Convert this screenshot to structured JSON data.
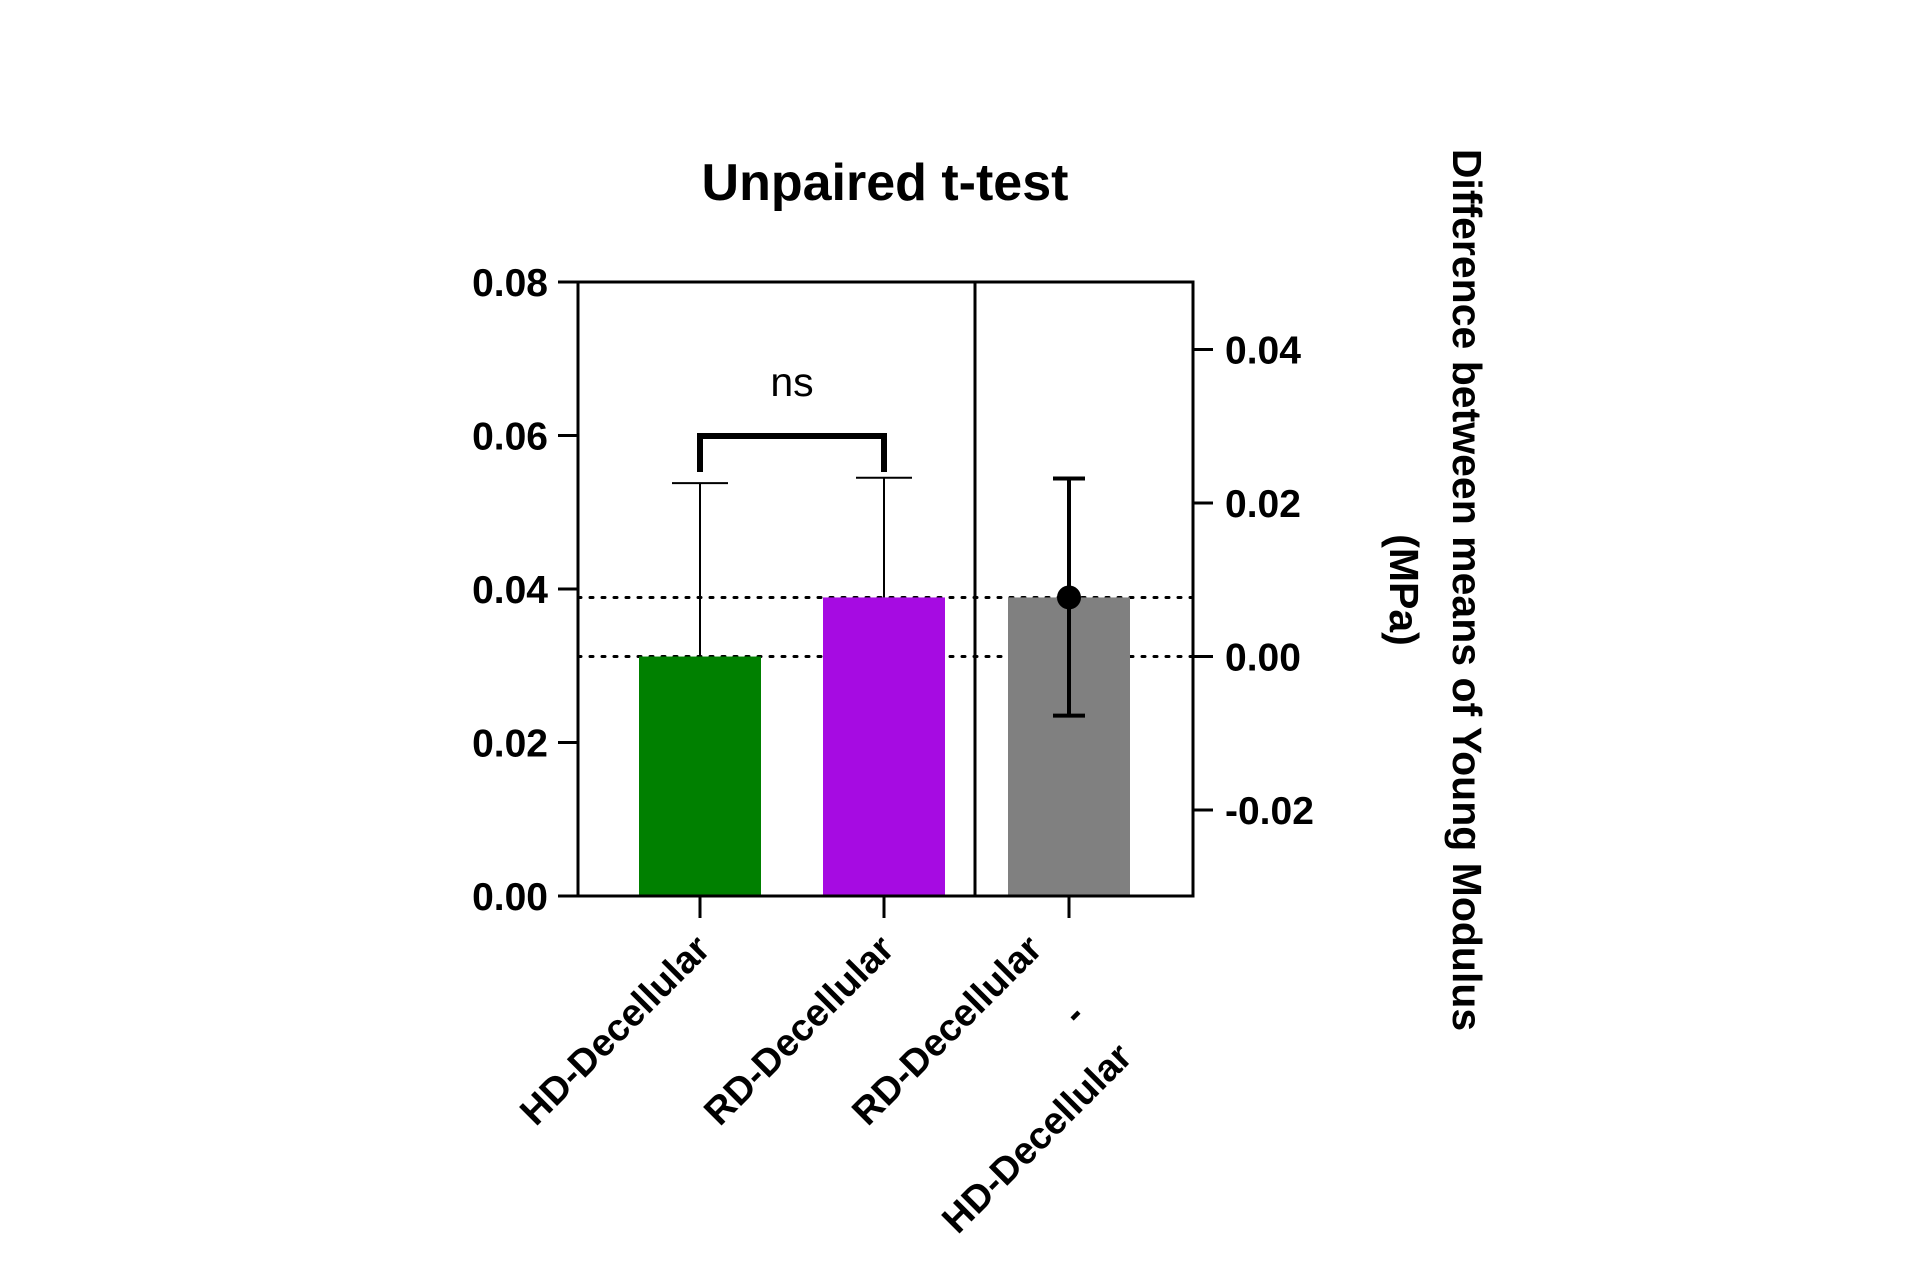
{
  "chart_data": {
    "type": "bar",
    "title": "Unpaired t-test",
    "categories": [
      "HD-Decellular",
      "RD-Decellular"
    ],
    "values": [
      0.0312,
      0.0389
    ],
    "error_upper": [
      0.0538,
      0.0545
    ],
    "colors": [
      "#008000",
      "#A60BE2"
    ],
    "ylim": [
      0,
      0.08
    ],
    "yticks": [
      "0.00",
      "0.02",
      "0.04",
      "0.06",
      "0.08"
    ],
    "ylabel": "",
    "significance": {
      "label": "ns",
      "between": [
        "HD-Decellular",
        "RD-Decellular"
      ]
    },
    "difference": {
      "label_line1": "RD-Decellular",
      "label_line2": "-",
      "label_line3": "HD-Decellular",
      "value": 0.0077,
      "ci_low": -0.0077,
      "ci_high": 0.0232,
      "color": "#808080"
    },
    "right_axis": {
      "label_line1": "Difference between means of Young Modulus",
      "label_line2": "(MPa)",
      "ylim": [
        -0.0312,
        0.0488
      ],
      "yticks": [
        "-0.02",
        "0.00",
        "0.02",
        "0.04"
      ],
      "tick_values": [
        -0.02,
        0.0,
        0.02,
        0.04
      ]
    },
    "reference_lines": "dotted",
    "grid": false,
    "legend": "none"
  }
}
